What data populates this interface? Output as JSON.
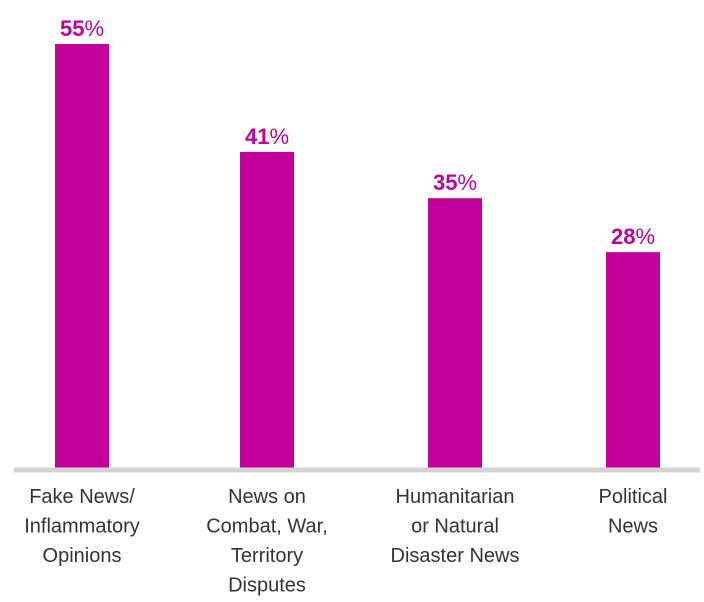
{
  "chart_data": {
    "type": "bar",
    "categories": [
      [
        "Fake News/",
        "Inflammatory",
        "Opinions"
      ],
      [
        "News on",
        "Combat, War,",
        "Territory",
        "Disputes"
      ],
      [
        "Humanitarian",
        "or Natural",
        "Disaster News"
      ],
      [
        "Political",
        "News"
      ]
    ],
    "values": [
      55,
      41,
      35,
      28
    ],
    "value_labels": [
      "55",
      "41",
      "35",
      "28"
    ],
    "value_suffix": "%",
    "title": "",
    "xlabel": "",
    "ylabel": "",
    "ylim": [
      0,
      55
    ],
    "grid": false,
    "legend": "none",
    "colors": {
      "bar": "#C4009A",
      "value_label": "#C4009A",
      "axis": "#D3D3D3",
      "category_text": "#333333"
    }
  }
}
